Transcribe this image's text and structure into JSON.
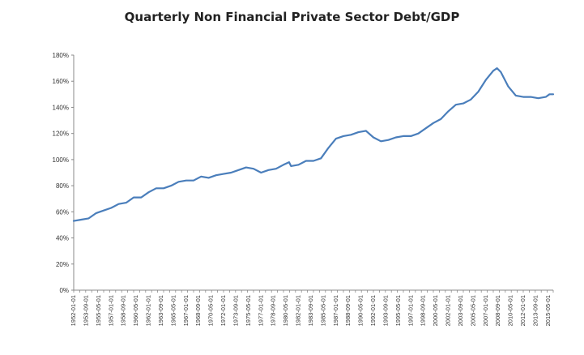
{
  "chart_data": {
    "type": "line",
    "title": "Quarterly Non Financial Private Sector Debt/GDP",
    "xlabel": "",
    "ylabel": "",
    "ylim": [
      0,
      180
    ],
    "ytick_labels": [
      "0%",
      "20%",
      "40%",
      "60%",
      "80%",
      "100%",
      "120%",
      "140%",
      "160%",
      "180%"
    ],
    "xtick_labels": [
      "1952-01-01",
      "1953-09-01",
      "1955-05-01",
      "1957-01-01",
      "1958-09-01",
      "1960-05-01",
      "1962-01-01",
      "1963-09-01",
      "1965-05-01",
      "1967-01-01",
      "1968-09-01",
      "1970-05-01",
      "1972-01-01",
      "1973-09-01",
      "1975-05-01",
      "1977-01-01",
      "1978-09-01",
      "1980-05-01",
      "1982-01-01",
      "1983-09-01",
      "1985-05-01",
      "1987-01-01",
      "1988-09-01",
      "1990-05-01",
      "1992-01-01",
      "1993-09-01",
      "1995-05-01",
      "1997-01-01",
      "1998-09-01",
      "2000-05-01",
      "2002-01-01",
      "2003-09-01",
      "2005-05-01",
      "2007-01-01",
      "2008-09-01",
      "2010-05-01",
      "2012-01-01",
      "2013-09-01",
      "2015-05-01"
    ],
    "grid": false,
    "legend": "none",
    "line_color": "#4a7ebb",
    "series": [
      {
        "x": [
          1952.0,
          1953.0,
          1954.0,
          1955.0,
          1956.0,
          1957.0,
          1958.0,
          1959.0,
          1960.0,
          1961.0,
          1962.0,
          1963.0,
          1964.0,
          1965.0,
          1966.0,
          1967.0,
          1968.0,
          1969.0,
          1970.0,
          1971.0,
          1972.0,
          1973.0,
          1974.0,
          1975.0,
          1976.0,
          1977.0,
          1978.0,
          1979.0,
          1980.0,
          1980.75,
          1981.0,
          1982.0,
          1983.0,
          1984.0,
          1985.0,
          1986.0,
          1987.0,
          1988.0,
          1989.0,
          1990.0,
          1991.0,
          1992.0,
          1993.0,
          1994.0,
          1995.0,
          1996.0,
          1997.0,
          1998.0,
          1999.0,
          2000.0,
          2001.0,
          2002.0,
          2003.0,
          2004.0,
          2005.0,
          2006.0,
          2007.0,
          2008.0,
          2008.5,
          2009.0,
          2010.0,
          2011.0,
          2012.0,
          2013.0,
          2014.0,
          2015.0,
          2015.5,
          2016.0
        ],
        "values": [
          53,
          54,
          55,
          59,
          61,
          63,
          66,
          67,
          71,
          71,
          75,
          78,
          78,
          80,
          83,
          84,
          84,
          87,
          86,
          88,
          89,
          90,
          92,
          94,
          93,
          90,
          92,
          93,
          96,
          98,
          95,
          96,
          99,
          99,
          101,
          109,
          116,
          118,
          119,
          121,
          122,
          117,
          114,
          115,
          117,
          118,
          118,
          120,
          124,
          128,
          131,
          137,
          142,
          143,
          146,
          152,
          161,
          168,
          170,
          167,
          156,
          149,
          148,
          148,
          147,
          148,
          150,
          150
        ]
      }
    ]
  }
}
